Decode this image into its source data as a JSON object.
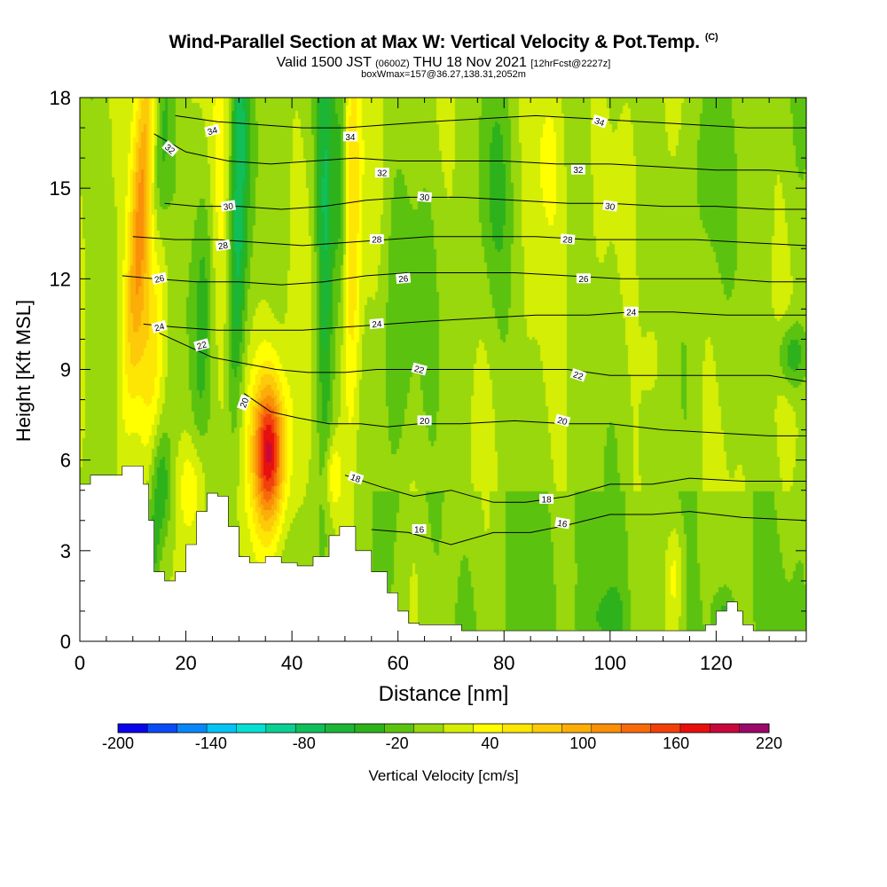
{
  "header": {
    "title": "Wind-Parallel Section at Max W: Vertical Velocity & Pot.Temp.",
    "title_mark": "(C)",
    "valid_prefix": "Valid 1500 JST",
    "valid_utc": "(0600Z)",
    "valid_date": "THU 18 Nov 2021",
    "forecast": "[12hrFcst@2227z]",
    "boxline": "boxWmax=157@36.27,138.31,2052m"
  },
  "chart_data": {
    "type": "heatmap",
    "title": "Wind-Parallel Section at Max W: Vertical Velocity & Pot.Temp.",
    "xlabel": "Distance [nm]",
    "ylabel": "Height [Kft MSL]",
    "xlim": [
      0,
      137
    ],
    "ylim": [
      0,
      18
    ],
    "x_ticks": [
      0,
      20,
      40,
      60,
      80,
      100,
      120
    ],
    "y_ticks": [
      0,
      3,
      6,
      9,
      12,
      15,
      18
    ],
    "colorbar": {
      "label": "Vertical Velocity [cm/s]",
      "tick_values": [
        -200,
        -140,
        -80,
        -20,
        40,
        100,
        160,
        220
      ],
      "min": -200,
      "max": 220,
      "step": 20,
      "colors": [
        "#0a05e8",
        "#0a4bf5",
        "#0a87f7",
        "#05c3f5",
        "#06dfd2",
        "#0ccf93",
        "#10bf5a",
        "#1cb637",
        "#2eb21c",
        "#5cc210",
        "#98d80c",
        "#d4ee05",
        "#ffff00",
        "#fde504",
        "#fcca08",
        "#fbae08",
        "#fa8f08",
        "#f76a0a",
        "#f2400c",
        "#e6100e",
        "#c8083a",
        "#9a0868"
      ]
    },
    "terrain": [
      {
        "x": 0,
        "h": 5.2
      },
      {
        "x": 2,
        "h": 5.5
      },
      {
        "x": 7,
        "h": 5.5
      },
      {
        "x": 8,
        "h": 5.8
      },
      {
        "x": 11,
        "h": 5.8
      },
      {
        "x": 12,
        "h": 5.2
      },
      {
        "x": 13,
        "h": 4.0
      },
      {
        "x": 14,
        "h": 2.3
      },
      {
        "x": 16,
        "h": 2.0
      },
      {
        "x": 18,
        "h": 2.3
      },
      {
        "x": 20,
        "h": 3.2
      },
      {
        "x": 22,
        "h": 4.3
      },
      {
        "x": 24,
        "h": 4.9
      },
      {
        "x": 26,
        "h": 4.8
      },
      {
        "x": 28,
        "h": 3.8
      },
      {
        "x": 30,
        "h": 2.8
      },
      {
        "x": 32,
        "h": 2.6
      },
      {
        "x": 35,
        "h": 2.8
      },
      {
        "x": 38,
        "h": 2.6
      },
      {
        "x": 41,
        "h": 2.5
      },
      {
        "x": 44,
        "h": 2.8
      },
      {
        "x": 47,
        "h": 3.5
      },
      {
        "x": 49,
        "h": 3.8
      },
      {
        "x": 52,
        "h": 3.0
      },
      {
        "x": 55,
        "h": 2.3
      },
      {
        "x": 58,
        "h": 1.6
      },
      {
        "x": 60,
        "h": 1.0
      },
      {
        "x": 62,
        "h": 0.6
      },
      {
        "x": 64,
        "h": 0.55
      },
      {
        "x": 70,
        "h": 0.55
      },
      {
        "x": 72,
        "h": 0.35
      },
      {
        "x": 117,
        "h": 0.35
      },
      {
        "x": 118,
        "h": 0.55
      },
      {
        "x": 120,
        "h": 1.0
      },
      {
        "x": 122,
        "h": 1.3
      },
      {
        "x": 124,
        "h": 1.0
      },
      {
        "x": 125,
        "h": 0.55
      },
      {
        "x": 127,
        "h": 0.35
      },
      {
        "x": 137,
        "h": 0.35
      }
    ],
    "features": [
      {
        "x": 11,
        "h": 13.5,
        "sx": 1.6,
        "sy": 4.5,
        "w": 115,
        "tilt": 0.35
      },
      {
        "x": 13.5,
        "h": 10.5,
        "sx": 1.8,
        "sy": 3.5,
        "w": 60,
        "tilt": 0.3
      },
      {
        "x": 35.5,
        "h": 6.3,
        "sx": 2.0,
        "sy": 1.6,
        "w": 150,
        "tilt": 0
      },
      {
        "x": 35.5,
        "h": 6.3,
        "sx": 3.8,
        "sy": 2.8,
        "w": 40,
        "tilt": 0
      },
      {
        "x": 21,
        "h": 5.2,
        "sx": 2.0,
        "sy": 1.2,
        "w": 40,
        "tilt": 0
      },
      {
        "x": 51,
        "h": 13.5,
        "sx": 1.3,
        "sy": 6.0,
        "w": 75,
        "tilt": 0
      },
      {
        "x": 47.5,
        "h": 5.5,
        "sx": 1.2,
        "sy": 0.9,
        "w": 45,
        "tilt": 0
      },
      {
        "x": 26,
        "h": 15.5,
        "sx": 2.0,
        "sy": 3.5,
        "w": 35,
        "tilt": 0
      },
      {
        "x": 88,
        "h": 16.5,
        "sx": 2.5,
        "sy": 2.5,
        "w": 35,
        "tilt": 0
      },
      {
        "x": 112,
        "h": 2.2,
        "sx": 1.2,
        "sy": 1.2,
        "w": 35,
        "tilt": 0
      },
      {
        "x": 108,
        "h": 9.5,
        "sx": 1.5,
        "sy": 1.5,
        "w": 25,
        "tilt": 0
      },
      {
        "x": 15,
        "h": 5.2,
        "sx": 1.4,
        "sy": 1.4,
        "w": -60,
        "tilt": 0
      },
      {
        "x": 29.5,
        "h": 14,
        "sx": 1.2,
        "sy": 5.5,
        "w": -85,
        "tilt": 0.1
      },
      {
        "x": 46,
        "h": 13.5,
        "sx": 1.1,
        "sy": 5.5,
        "w": -75,
        "tilt": 0
      },
      {
        "x": 49,
        "h": 15,
        "sx": 1.0,
        "sy": 3.0,
        "w": -55,
        "tilt": 0
      },
      {
        "x": 14.5,
        "h": 15.5,
        "sx": 1.6,
        "sy": 3.0,
        "w": -60,
        "tilt": 0.3
      },
      {
        "x": 23,
        "h": 11,
        "sx": 1.3,
        "sy": 3.5,
        "w": -35,
        "tilt": 0.2
      },
      {
        "x": 13.5,
        "h": 3.0,
        "sx": 1.0,
        "sy": 1.0,
        "w": -45,
        "tilt": 0
      },
      {
        "x": 134,
        "h": 9.5,
        "sx": 2.0,
        "sy": 0.8,
        "w": -55,
        "tilt": 0
      },
      {
        "x": 60,
        "h": 11,
        "sx": 2.0,
        "sy": 3.5,
        "w": -30,
        "tilt": 0
      },
      {
        "x": 78,
        "h": 15,
        "sx": 2.0,
        "sy": 2.5,
        "w": -25,
        "tilt": 0
      },
      {
        "x": 118,
        "h": 16,
        "sx": 2.0,
        "sy": 2.5,
        "w": -30,
        "tilt": 0
      },
      {
        "x": 99,
        "h": 0.8,
        "sx": 3.0,
        "sy": 0.7,
        "w": -28,
        "tilt": 0
      },
      {
        "x": 121,
        "h": 1.0,
        "sx": 1.5,
        "sy": 0.6,
        "w": -30,
        "tilt": 0
      }
    ],
    "theta_contours": [
      {
        "label": "16",
        "points": [
          [
            55,
            3.7
          ],
          [
            62,
            3.6
          ],
          [
            70,
            3.2
          ],
          [
            78,
            3.6
          ],
          [
            85,
            3.6
          ],
          [
            92,
            3.85
          ],
          [
            100,
            4.2
          ],
          [
            108,
            4.2
          ],
          [
            115,
            4.3
          ],
          [
            125,
            4.1
          ],
          [
            137,
            4.0
          ]
        ]
      },
      {
        "label": "18",
        "points": [
          [
            50,
            5.5
          ],
          [
            57,
            5.1
          ],
          [
            63,
            4.8
          ],
          [
            70,
            5.0
          ],
          [
            78,
            4.6
          ],
          [
            84,
            4.6
          ],
          [
            92,
            4.8
          ],
          [
            100,
            5.2
          ],
          [
            108,
            5.2
          ],
          [
            115,
            5.4
          ],
          [
            125,
            5.3
          ],
          [
            137,
            5.3
          ]
        ]
      },
      {
        "label": "20",
        "points": [
          [
            31,
            8.2
          ],
          [
            36,
            7.6
          ],
          [
            41,
            7.4
          ],
          [
            47,
            7.2
          ],
          [
            53,
            7.2
          ],
          [
            58,
            7.1
          ],
          [
            64,
            7.2
          ],
          [
            72,
            7.2
          ],
          [
            82,
            7.3
          ],
          [
            92,
            7.2
          ],
          [
            100,
            7.2
          ],
          [
            110,
            7.0
          ],
          [
            120,
            6.9
          ],
          [
            130,
            6.8
          ],
          [
            137,
            6.8
          ]
        ]
      },
      {
        "label": "22",
        "points": [
          [
            15,
            10.2
          ],
          [
            20,
            9.8
          ],
          [
            25,
            9.4
          ],
          [
            31,
            9.2
          ],
          [
            37,
            9.0
          ],
          [
            43,
            8.9
          ],
          [
            50,
            8.9
          ],
          [
            56,
            9.0
          ],
          [
            64,
            9.0
          ],
          [
            72,
            9.0
          ],
          [
            82,
            9.0
          ],
          [
            92,
            9.0
          ],
          [
            100,
            8.8
          ],
          [
            110,
            8.8
          ],
          [
            120,
            8.8
          ],
          [
            130,
            8.8
          ],
          [
            137,
            8.6
          ]
        ]
      },
      {
        "label": "24",
        "points": [
          [
            12,
            10.5
          ],
          [
            18,
            10.4
          ],
          [
            26,
            10.3
          ],
          [
            34,
            10.3
          ],
          [
            42,
            10.3
          ],
          [
            50,
            10.4
          ],
          [
            58,
            10.5
          ],
          [
            66,
            10.6
          ],
          [
            76,
            10.7
          ],
          [
            86,
            10.8
          ],
          [
            96,
            10.8
          ],
          [
            104,
            10.9
          ],
          [
            112,
            10.9
          ],
          [
            122,
            10.8
          ],
          [
            130,
            10.8
          ],
          [
            137,
            10.8
          ]
        ]
      },
      {
        "label": "26",
        "points": [
          [
            8,
            12.1
          ],
          [
            14,
            12.0
          ],
          [
            22,
            11.9
          ],
          [
            30,
            11.9
          ],
          [
            38,
            11.8
          ],
          [
            46,
            11.9
          ],
          [
            54,
            12.1
          ],
          [
            62,
            12.2
          ],
          [
            72,
            12.2
          ],
          [
            82,
            12.2
          ],
          [
            92,
            12.1
          ],
          [
            102,
            12.0
          ],
          [
            112,
            12.0
          ],
          [
            122,
            12.0
          ],
          [
            130,
            11.9
          ],
          [
            137,
            11.9
          ]
        ]
      },
      {
        "label": "28",
        "points": [
          [
            10,
            13.4
          ],
          [
            18,
            13.3
          ],
          [
            26,
            13.3
          ],
          [
            34,
            13.2
          ],
          [
            42,
            13.1
          ],
          [
            50,
            13.2
          ],
          [
            58,
            13.3
          ],
          [
            66,
            13.4
          ],
          [
            76,
            13.4
          ],
          [
            86,
            13.4
          ],
          [
            96,
            13.3
          ],
          [
            106,
            13.3
          ],
          [
            116,
            13.3
          ],
          [
            126,
            13.2
          ],
          [
            137,
            13.1
          ]
        ]
      },
      {
        "label": "30",
        "points": [
          [
            16,
            14.5
          ],
          [
            22,
            14.4
          ],
          [
            30,
            14.4
          ],
          [
            38,
            14.3
          ],
          [
            46,
            14.4
          ],
          [
            54,
            14.6
          ],
          [
            62,
            14.7
          ],
          [
            72,
            14.7
          ],
          [
            82,
            14.6
          ],
          [
            92,
            14.5
          ],
          [
            100,
            14.5
          ],
          [
            110,
            14.4
          ],
          [
            120,
            14.4
          ],
          [
            130,
            14.3
          ],
          [
            137,
            14.3
          ]
        ]
      },
      {
        "label": "32",
        "points": [
          [
            14,
            16.8
          ],
          [
            20,
            16.2
          ],
          [
            28,
            15.9
          ],
          [
            36,
            15.8
          ],
          [
            44,
            15.9
          ],
          [
            52,
            16.0
          ],
          [
            60,
            15.9
          ],
          [
            70,
            15.9
          ],
          [
            80,
            15.9
          ],
          [
            90,
            15.8
          ],
          [
            100,
            15.8
          ],
          [
            110,
            15.7
          ],
          [
            120,
            15.6
          ],
          [
            130,
            15.6
          ],
          [
            137,
            15.5
          ]
        ]
      },
      {
        "label": "34",
        "points": [
          [
            18,
            17.4
          ],
          [
            26,
            17.2
          ],
          [
            34,
            17.1
          ],
          [
            42,
            17.0
          ],
          [
            50,
            17.0
          ],
          [
            58,
            17.1
          ],
          [
            66,
            17.2
          ],
          [
            76,
            17.3
          ],
          [
            86,
            17.4
          ],
          [
            96,
            17.3
          ],
          [
            106,
            17.2
          ],
          [
            116,
            17.1
          ],
          [
            126,
            17.0
          ],
          [
            137,
            17.0
          ]
        ]
      }
    ],
    "contour_labels": [
      {
        "text": "34",
        "x": 25,
        "h": 16.9,
        "angle": -15
      },
      {
        "text": "32",
        "x": 17,
        "h": 16.3,
        "angle": 40
      },
      {
        "text": "34",
        "x": 51,
        "h": 16.7,
        "angle": 0
      },
      {
        "text": "32",
        "x": 57,
        "h": 15.5,
        "angle": 0
      },
      {
        "text": "34",
        "x": 98,
        "h": 17.2,
        "angle": 20
      },
      {
        "text": "32",
        "x": 94,
        "h": 15.6,
        "angle": 0
      },
      {
        "text": "30",
        "x": 28,
        "h": 14.4,
        "angle": -8
      },
      {
        "text": "30",
        "x": 65,
        "h": 14.7,
        "angle": 5
      },
      {
        "text": "30",
        "x": 100,
        "h": 14.4,
        "angle": 8
      },
      {
        "text": "28",
        "x": 27,
        "h": 13.1,
        "angle": -8
      },
      {
        "text": "28",
        "x": 56,
        "h": 13.3,
        "angle": 0
      },
      {
        "text": "28",
        "x": 92,
        "h": 13.3,
        "angle": 5
      },
      {
        "text": "26",
        "x": 15,
        "h": 12.0,
        "angle": -12
      },
      {
        "text": "26",
        "x": 61,
        "h": 12.0,
        "angle": -5
      },
      {
        "text": "26",
        "x": 95,
        "h": 12.0,
        "angle": 0
      },
      {
        "text": "24",
        "x": 15,
        "h": 10.4,
        "angle": -15
      },
      {
        "text": "24",
        "x": 56,
        "h": 10.5,
        "angle": -5
      },
      {
        "text": "24",
        "x": 104,
        "h": 10.9,
        "angle": 0
      },
      {
        "text": "22",
        "x": 23,
        "h": 9.8,
        "angle": -15
      },
      {
        "text": "22",
        "x": 64,
        "h": 9.0,
        "angle": 15
      },
      {
        "text": "22",
        "x": 94,
        "h": 8.8,
        "angle": 18
      },
      {
        "text": "20",
        "x": 31,
        "h": 7.9,
        "angle": -70
      },
      {
        "text": "20",
        "x": 65,
        "h": 7.3,
        "angle": 0
      },
      {
        "text": "20",
        "x": 91,
        "h": 7.3,
        "angle": 15
      },
      {
        "text": "18",
        "x": 52,
        "h": 5.4,
        "angle": 20
      },
      {
        "text": "18",
        "x": 88,
        "h": 4.7,
        "angle": 0
      },
      {
        "text": "16",
        "x": 64,
        "h": 3.7,
        "angle": 0
      },
      {
        "text": "16",
        "x": 91,
        "h": 3.9,
        "angle": 10
      }
    ],
    "grid": false,
    "legend": "bottom"
  }
}
